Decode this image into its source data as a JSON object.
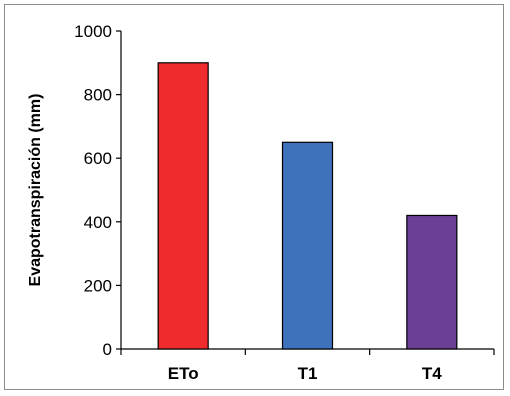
{
  "chart_data": {
    "type": "bar",
    "title": "",
    "xlabel": "",
    "ylabel": "Evapotranspiración (mm)",
    "categories": [
      "ETo",
      "T1",
      "T4"
    ],
    "values": [
      900,
      650,
      420
    ],
    "colors": [
      "#ef2b2d",
      "#3f72bc",
      "#6a3f95"
    ],
    "ylim": [
      0,
      1000
    ],
    "yticks": [
      0,
      200,
      400,
      600,
      800,
      1000
    ],
    "grid": false,
    "legend": "none"
  }
}
